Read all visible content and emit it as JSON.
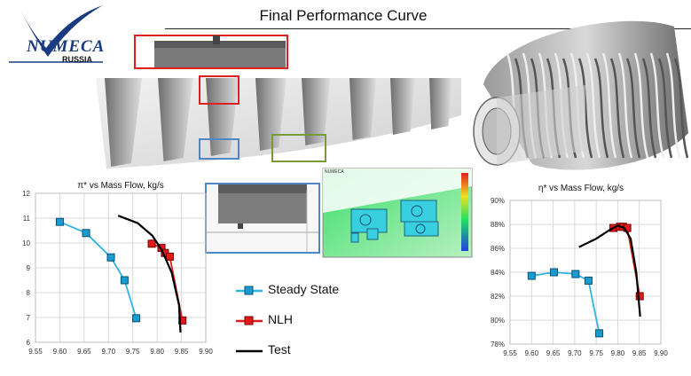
{
  "header": {
    "title": "Final Performance Curve"
  },
  "logo": {
    "word": "NUMECA",
    "sub": "RUSSIA"
  },
  "colors": {
    "steady": "#2fb5e3",
    "steady_marker": "#1a9bd0",
    "nlh": "#e01a1a",
    "test": "#000000",
    "grid": "#d9d9d9",
    "highlight_red": "#e02020",
    "highlight_blue": "#4f86c6",
    "highlight_green": "#7a9a3a"
  },
  "legend": {
    "items": [
      {
        "label": "Steady State",
        "key": "steady"
      },
      {
        "label": "NLH",
        "key": "nlh"
      },
      {
        "label": "Test",
        "key": "test"
      }
    ]
  },
  "inset": {
    "label": "NUMECA"
  },
  "chart_data": [
    {
      "type": "line",
      "title": "π* vs Mass Flow, kg/s",
      "xlim": [
        9.55,
        9.9
      ],
      "ylim": [
        6,
        12
      ],
      "x_ticks": [
        "9.55",
        "9.60",
        "9.65",
        "9.70",
        "9.75",
        "9.80",
        "9.85",
        "9.90"
      ],
      "y_ticks": [
        "6",
        "7",
        "8",
        "9",
        "10",
        "11",
        "12"
      ],
      "grid": true,
      "series": [
        {
          "name": "Steady State",
          "style": "steady",
          "x": [
            9.6,
            9.654,
            9.705,
            9.733,
            9.757
          ],
          "y": [
            10.85,
            10.4,
            9.42,
            8.5,
            6.97
          ]
        },
        {
          "name": "NLH",
          "style": "nlh",
          "x": [
            9.789,
            9.809,
            9.816,
            9.826,
            9.852
          ],
          "y": [
            9.97,
            9.8,
            9.6,
            9.45,
            6.88
          ]
        },
        {
          "name": "Test",
          "style": "test",
          "x": [
            9.72,
            9.76,
            9.79,
            9.81,
            9.83,
            9.845,
            9.848
          ],
          "y": [
            11.1,
            10.8,
            10.3,
            9.7,
            8.8,
            7.5,
            6.4
          ]
        }
      ]
    },
    {
      "type": "line",
      "title": "η* vs Mass Flow, kg/s",
      "xlim": [
        9.55,
        9.9
      ],
      "ylim": [
        78,
        90
      ],
      "x_ticks": [
        "9.55",
        "9.60",
        "9.65",
        "9.70",
        "9.75",
        "9.80",
        "9.85",
        "9.90"
      ],
      "y_ticks": [
        "78%",
        "80%",
        "82%",
        "84%",
        "86%",
        "88%",
        "90%"
      ],
      "grid": true,
      "series": [
        {
          "name": "Steady State",
          "style": "steady",
          "x": [
            9.6,
            9.652,
            9.702,
            9.732,
            9.757
          ],
          "y": [
            83.7,
            84.0,
            83.85,
            83.3,
            78.9
          ]
        },
        {
          "name": "NLH",
          "style": "nlh",
          "x": [
            9.79,
            9.805,
            9.812,
            9.822,
            9.851
          ],
          "y": [
            87.7,
            87.8,
            87.8,
            87.7,
            82.0
          ]
        },
        {
          "name": "Test",
          "style": "test",
          "x": [
            9.71,
            9.75,
            9.78,
            9.8,
            9.815,
            9.83,
            9.843,
            9.852
          ],
          "y": [
            86.1,
            86.8,
            87.5,
            87.9,
            87.7,
            86.8,
            84.0,
            80.3
          ]
        }
      ]
    }
  ]
}
